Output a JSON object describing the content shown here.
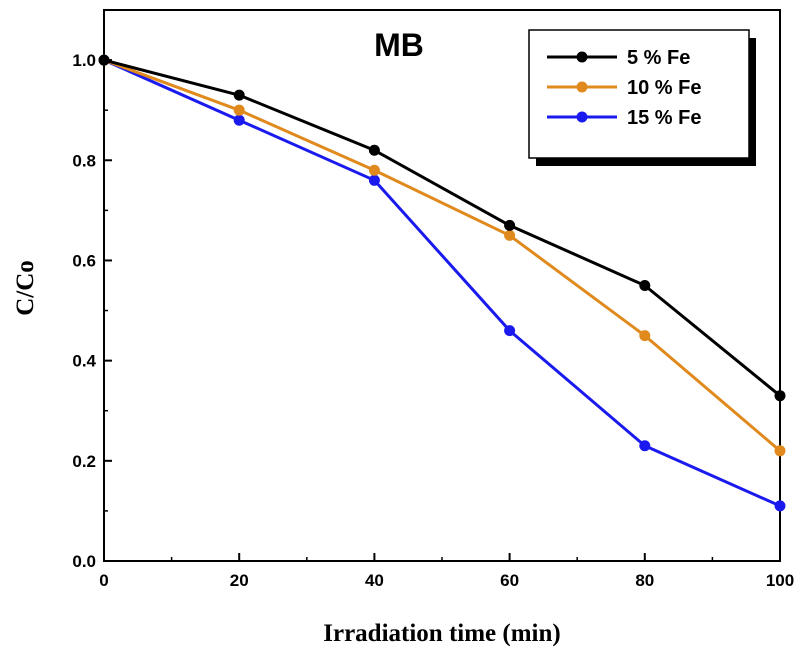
{
  "chart_data": {
    "type": "line",
    "title": "",
    "annotation": "MB",
    "xlabel": "Irradiation time (min)",
    "ylabel": "C/Co",
    "xlim": [
      0,
      100
    ],
    "ylim": [
      0,
      1.1
    ],
    "xticks": [
      "0",
      "20",
      "40",
      "60",
      "80",
      "100"
    ],
    "yticks": [
      "0.0",
      "0.2",
      "0.4",
      "0.6",
      "0.8",
      "1.0"
    ],
    "grid": false,
    "legend_position": "top-right",
    "x": [
      0,
      20,
      40,
      60,
      80,
      100
    ],
    "series": [
      {
        "name": "5 % Fe",
        "color": "#000000",
        "values": [
          1.0,
          0.93,
          0.82,
          0.67,
          0.55,
          0.33
        ]
      },
      {
        "name": "10 % Fe",
        "color": "#e08a1e",
        "values": [
          1.0,
          0.9,
          0.78,
          0.65,
          0.45,
          0.22
        ]
      },
      {
        "name": "15 % Fe",
        "color": "#1a1aee",
        "values": [
          1.0,
          0.88,
          0.76,
          0.46,
          0.23,
          0.11
        ]
      }
    ]
  }
}
